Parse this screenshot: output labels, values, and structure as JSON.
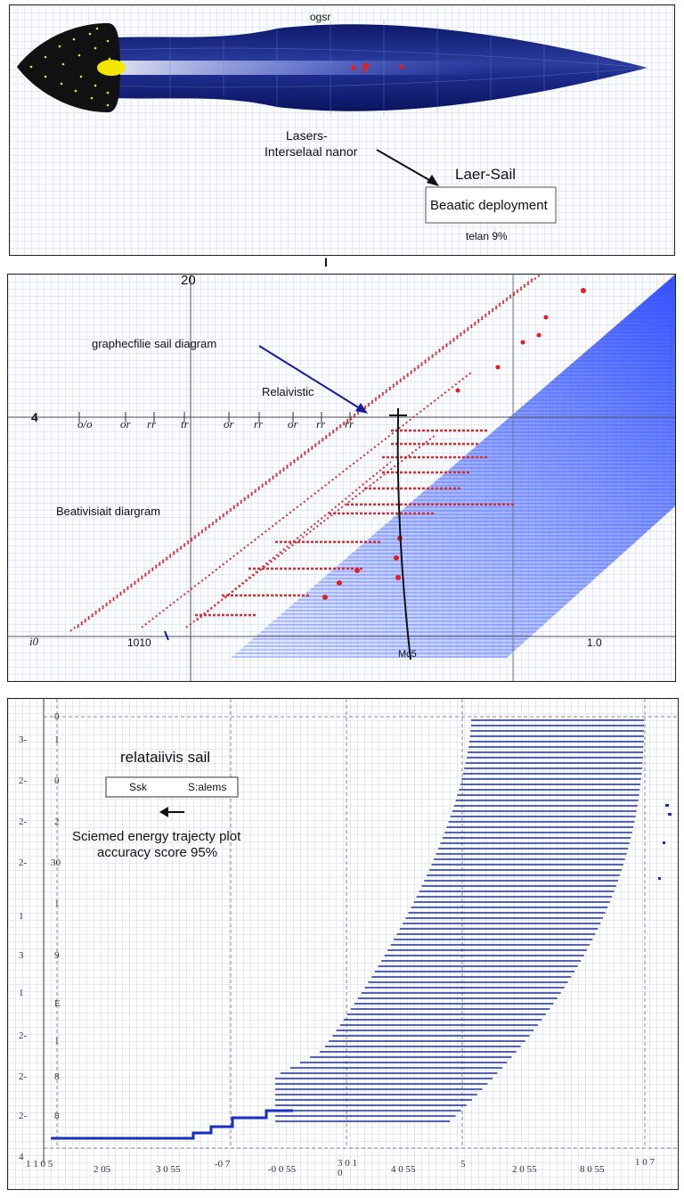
{
  "top_panel": {
    "top_label": "ogsr",
    "laser_label": "Lasers-",
    "interstellar_label": "Interselaal nanor",
    "box_title": "Laer-Sail",
    "box_text": "Beaatic deployment",
    "caption": "telan 9%",
    "colors": {
      "sail": "#1a237e",
      "nose": "#111111",
      "beam": "#f5e600"
    }
  },
  "separator_mark": "I",
  "middle_panel": {
    "label_graphene": "graphecfilie sail  diagram",
    "label_relativistic": "Relaivistic",
    "label_beat": "Beativisiait diargram",
    "top_value": "20",
    "left_value": "4",
    "x_ticks": [
      "o/o",
      "or",
      "rr",
      "tr",
      "or",
      "rr",
      "or",
      "rr",
      "rr"
    ],
    "bottom_left": "i0",
    "bottom_value": "1010",
    "bottom_right": "1.0",
    "bottom_label": "Mc5",
    "colors": {
      "points": "#d32f2f",
      "cloud": "#2f55ff",
      "arrow": "#1a1aa0"
    }
  },
  "bottom_panel": {
    "title": "relataiivis sail",
    "legend_series": "Ssk",
    "legend_right": "S:alems",
    "text_line1": "Sciemed  energy trajecty plot",
    "text_line2": "accuracy score 95%",
    "y_ticks": [
      "3-",
      "2-",
      "2-",
      "2-",
      "1",
      "3",
      "1",
      "2-",
      "2-",
      "2-",
      "4"
    ],
    "inner_ticks": [
      "0",
      "1",
      "0",
      "2",
      "30",
      "1",
      "9",
      "E",
      "1",
      "8",
      "8"
    ],
    "x_ticks": [
      "2 05",
      "3 0 55",
      "-0 7",
      "-0 0 55",
      "3 0 1 0",
      "4 0 55",
      "5",
      "2 0 55",
      "8 0 55",
      "1 0 7"
    ],
    "x_left": "1 1 0 5",
    "colors": {
      "series": "#1a2dbf",
      "legend_mark": "#d32f2f"
    }
  }
}
